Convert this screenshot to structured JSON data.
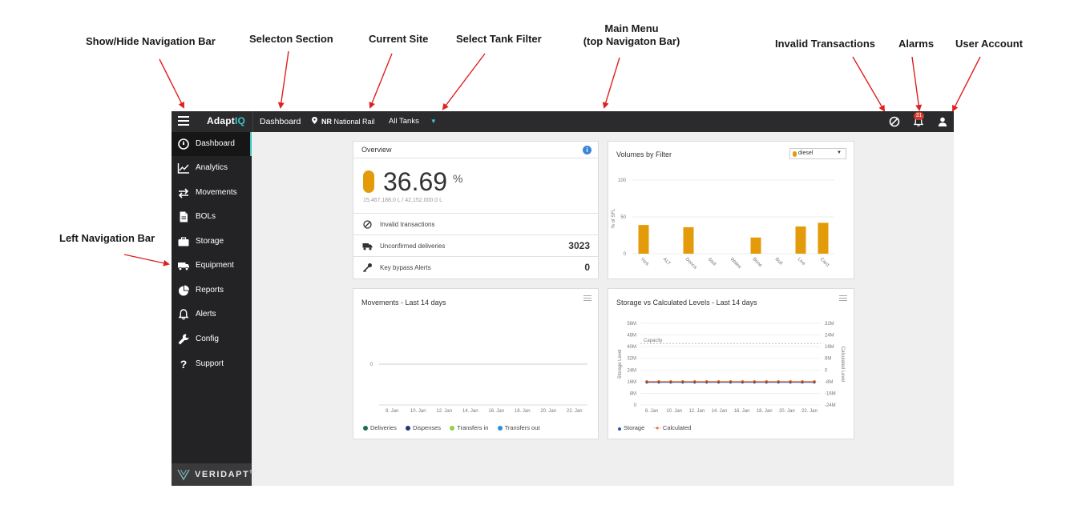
{
  "annotations": {
    "show_hide_nav": "Show/Hide Navigation Bar",
    "selection_section": "Selecton Section",
    "current_site": "Current Site",
    "select_tank_filter": "Select Tank Filter",
    "main_menu_line1": "Main Menu",
    "main_menu_line2": "(top Navigaton Bar)",
    "invalid_transactions": "Invalid Transactions",
    "alarms": "Alarms",
    "user_account": "User Account",
    "left_nav": "Left  Navigation Bar"
  },
  "colors": {
    "accent": "#3cc7c7",
    "fuel": "#e39b09",
    "topbar": "#2b2b2d",
    "sidebar": "#232325",
    "alert_badge": "#d23a2a",
    "arrow": "#e02020",
    "storage_axis": "#2b55a8",
    "calculated_axis": "#f06a2e"
  },
  "topbar": {
    "logo_main": "Adapt",
    "logo_accent": "IQ",
    "section": "Dashboard",
    "site_code": "NR",
    "site_name": "National Rail",
    "tank_filter": "All Tanks",
    "alarm_count": "31",
    "icons": [
      "menu-icon",
      "map-pin-icon",
      "caret-down-icon",
      "no-entry-icon",
      "bell-icon",
      "user-icon"
    ]
  },
  "sidebar": {
    "items": [
      {
        "label": "Dashboard",
        "icon": "dashboard-icon"
      },
      {
        "label": "Analytics",
        "icon": "analytics-icon"
      },
      {
        "label": "Movements",
        "icon": "movements-icon"
      },
      {
        "label": "BOLs",
        "icon": "document-icon"
      },
      {
        "label": "Storage",
        "icon": "storage-icon"
      },
      {
        "label": "Equipment",
        "icon": "truck-icon"
      },
      {
        "label": "Reports",
        "icon": "pie-chart-icon"
      },
      {
        "label": "Alerts",
        "icon": "bell-icon"
      },
      {
        "label": "Config",
        "icon": "wrench-icon"
      },
      {
        "label": "Support",
        "icon": "question-icon"
      }
    ],
    "active": "Dashboard",
    "brand": "VERIDAPT",
    "brand_tm": "TM"
  },
  "overview": {
    "title": "Overview",
    "info_glyph": "i",
    "percent": "36.69",
    "percent_sign": "%",
    "fill_level": 0.3669,
    "capacity_text": "15,467,188.0 L / 42,152,000.0 L",
    "rows": [
      {
        "label": "Invalid transactions",
        "value": "",
        "icon": "no-entry-icon"
      },
      {
        "label": "Unconfirmed deliveries",
        "value": "3023",
        "icon": "truck-icon"
      },
      {
        "label": "Key bypass Alerts",
        "value": "0",
        "icon": "key-icon"
      }
    ]
  },
  "volumes": {
    "title": "Volumes by Filter",
    "filter_value": "diesel",
    "ylabel": "% of SFL"
  },
  "movements": {
    "title": "Movements - Last 14 days",
    "legend": [
      {
        "label": "Deliveries",
        "color": "#1e6b55"
      },
      {
        "label": "Dispenses",
        "color": "#1f3a7a"
      },
      {
        "label": "Transfers in",
        "color": "#8fd14f"
      },
      {
        "label": "Transfers out",
        "color": "#2f8fe0"
      }
    ]
  },
  "storage_levels": {
    "title": "Storage vs Calculated Levels - Last 14 days",
    "capacity_label": "Capacity",
    "legend": [
      {
        "label": "Storage",
        "color": "#2b55a8"
      },
      {
        "label": "Calculated",
        "color": "#f06a2e"
      }
    ]
  },
  "chart_data": [
    {
      "type": "bar",
      "title": "Volumes by Filter",
      "ylabel": "% of SFL",
      "ylim": [
        0,
        100
      ],
      "yticks": [
        "0",
        "50",
        "100"
      ],
      "categories": [
        "York",
        "ALT",
        "Donca",
        "Stell",
        "Wales",
        "Bone",
        "Bull",
        "Live",
        "Card"
      ],
      "values": [
        39,
        0,
        36,
        0,
        0,
        22,
        0,
        37,
        42
      ]
    },
    {
      "type": "line",
      "title": "Movements - Last 14 days",
      "x": [
        "8. Jan",
        "10. Jan",
        "12. Jan",
        "14. Jan",
        "16. Jan",
        "18. Jan",
        "20. Jan",
        "22. Jan"
      ],
      "yticks": [
        "0"
      ],
      "series": [
        {
          "name": "Deliveries",
          "values": [
            0,
            0,
            0,
            0,
            0,
            0,
            0,
            0
          ]
        },
        {
          "name": "Dispenses",
          "values": [
            0,
            0,
            0,
            0,
            0,
            0,
            0,
            0
          ]
        },
        {
          "name": "Transfers in",
          "values": [
            0,
            0,
            0,
            0,
            0,
            0,
            0,
            0
          ]
        },
        {
          "name": "Transfers out",
          "values": [
            0,
            0,
            0,
            0,
            0,
            0,
            0,
            0
          ]
        }
      ]
    },
    {
      "type": "line",
      "title": "Storage vs Calculated Levels - Last 14 days",
      "ylabel": "Storage Level",
      "y2label": "Calculated Level",
      "yticks": [
        "0",
        "8M",
        "16M",
        "24M",
        "32M",
        "40M",
        "48M",
        "56M"
      ],
      "y2ticks": [
        "-24M",
        "-16M",
        "-8M",
        "0",
        "8M",
        "16M",
        "24M",
        "32M"
      ],
      "ylim": [
        0,
        56000000
      ],
      "y2lim": [
        -24000000,
        32000000
      ],
      "capacity": 42152000,
      "x": [
        "8. Jan",
        "10. Jan",
        "12. Jan",
        "14. Jan",
        "16. Jan",
        "18. Jan",
        "20. Jan",
        "22. Jan"
      ],
      "point_count": 15,
      "series": [
        {
          "name": "Storage",
          "value": 15467188
        },
        {
          "name": "Calculated",
          "value": -8000000
        }
      ]
    }
  ]
}
